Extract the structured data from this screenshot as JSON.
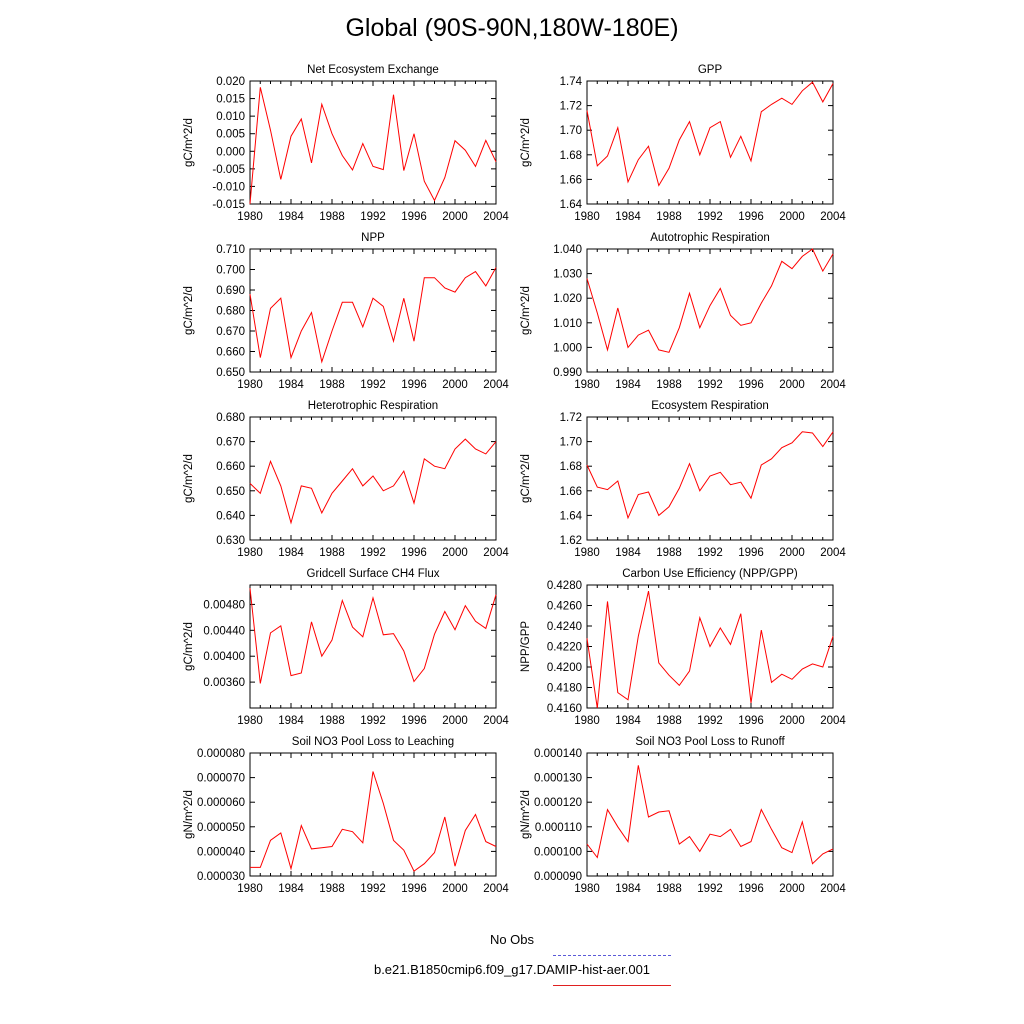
{
  "title": "Global (90S-90N,180W-180E)",
  "legend": {
    "obs_label": "No Obs",
    "obs_color": "#5a5ad8",
    "case_label": "b.e21.B1850cmip6.f09_g17.DAMIP-hist-aer.001",
    "case_color": "#e02020"
  },
  "line_color": "#ff0000",
  "chart_data": [
    {
      "type": "line",
      "title": "Net Ecosystem Exchange",
      "ylabel": "gC/m^2/d",
      "ylim": [
        -0.015,
        0.02
      ],
      "yticks": [
        -0.015,
        -0.01,
        -0.005,
        0.0,
        0.005,
        0.01,
        0.015,
        0.02
      ],
      "ytick_labels": [
        "-0.015",
        "-0.010",
        "-0.005",
        "0.000",
        "0.005",
        "0.010",
        "0.015",
        "0.020"
      ],
      "xlim": [
        1980,
        2004
      ],
      "xticks": [
        1980,
        1984,
        1988,
        1992,
        1996,
        2000,
        2004
      ],
      "x": [
        1980,
        1981,
        1982,
        1983,
        1984,
        1985,
        1986,
        1987,
        1988,
        1989,
        1990,
        1991,
        1992,
        1993,
        1994,
        1995,
        1996,
        1997,
        1998,
        1999,
        2000,
        2001,
        2002,
        2003,
        2004
      ],
      "values": [
        -0.015,
        0.0182,
        0.006,
        -0.008,
        0.0043,
        0.0092,
        -0.0033,
        0.0134,
        0.005,
        -0.0012,
        -0.0053,
        0.0022,
        -0.0043,
        -0.0052,
        0.0161,
        -0.0055,
        0.005,
        -0.0085,
        -0.014,
        -0.0075,
        0.003,
        0.0003,
        -0.0043,
        0.0031,
        -0.003
      ]
    },
    {
      "type": "line",
      "title": "GPP",
      "ylabel": "gC/m^2/d",
      "ylim": [
        1.64,
        1.74
      ],
      "yticks": [
        1.64,
        1.66,
        1.68,
        1.7,
        1.72,
        1.74
      ],
      "ytick_labels": [
        "1.64",
        "1.66",
        "1.68",
        "1.70",
        "1.72",
        "1.74"
      ],
      "xlim": [
        1980,
        2004
      ],
      "xticks": [
        1980,
        1984,
        1988,
        1992,
        1996,
        2000,
        2004
      ],
      "x": [
        1980,
        1981,
        1982,
        1983,
        1984,
        1985,
        1986,
        1987,
        1988,
        1989,
        1990,
        1991,
        1992,
        1993,
        1994,
        1995,
        1996,
        1997,
        1998,
        1999,
        2000,
        2001,
        2002,
        2003,
        2004
      ],
      "values": [
        1.716,
        1.671,
        1.679,
        1.702,
        1.658,
        1.676,
        1.687,
        1.655,
        1.669,
        1.692,
        1.707,
        1.68,
        1.702,
        1.707,
        1.678,
        1.695,
        1.675,
        1.715,
        1.721,
        1.726,
        1.721,
        1.732,
        1.739,
        1.723,
        1.738
      ]
    },
    {
      "type": "line",
      "title": "NPP",
      "ylabel": "gC/m^2/d",
      "ylim": [
        0.65,
        0.71
      ],
      "yticks": [
        0.65,
        0.66,
        0.67,
        0.68,
        0.69,
        0.7,
        0.71
      ],
      "ytick_labels": [
        "0.650",
        "0.660",
        "0.670",
        "0.680",
        "0.690",
        "0.700",
        "0.710"
      ],
      "xlim": [
        1980,
        2004
      ],
      "xticks": [
        1980,
        1984,
        1988,
        1992,
        1996,
        2000,
        2004
      ],
      "x": [
        1980,
        1981,
        1982,
        1983,
        1984,
        1985,
        1986,
        1987,
        1988,
        1989,
        1990,
        1991,
        1992,
        1993,
        1994,
        1995,
        1996,
        1997,
        1998,
        1999,
        2000,
        2001,
        2002,
        2003,
        2004
      ],
      "values": [
        0.688,
        0.657,
        0.681,
        0.686,
        0.657,
        0.67,
        0.679,
        0.655,
        0.67,
        0.684,
        0.684,
        0.672,
        0.686,
        0.682,
        0.665,
        0.686,
        0.665,
        0.696,
        0.696,
        0.691,
        0.689,
        0.696,
        0.699,
        0.692,
        0.701
      ]
    },
    {
      "type": "line",
      "title": "Autotrophic Respiration",
      "ylabel": "gC/m^2/d",
      "ylim": [
        0.99,
        1.04
      ],
      "yticks": [
        0.99,
        1.0,
        1.01,
        1.02,
        1.03,
        1.04
      ],
      "ytick_labels": [
        "0.990",
        "1.000",
        "1.010",
        "1.020",
        "1.030",
        "1.040"
      ],
      "xlim": [
        1980,
        2004
      ],
      "xticks": [
        1980,
        1984,
        1988,
        1992,
        1996,
        2000,
        2004
      ],
      "x": [
        1980,
        1981,
        1982,
        1983,
        1984,
        1985,
        1986,
        1987,
        1988,
        1989,
        1990,
        1991,
        1992,
        1993,
        1994,
        1995,
        1996,
        1997,
        1998,
        1999,
        2000,
        2001,
        2002,
        2003,
        2004
      ],
      "values": [
        1.028,
        1.014,
        0.999,
        1.016,
        1.0,
        1.005,
        1.007,
        0.999,
        0.998,
        1.008,
        1.022,
        1.008,
        1.017,
        1.024,
        1.013,
        1.009,
        1.01,
        1.018,
        1.025,
        1.035,
        1.032,
        1.037,
        1.04,
        1.031,
        1.038
      ]
    },
    {
      "type": "line",
      "title": "Heterotrophic Respiration",
      "ylabel": "gC/m^2/d",
      "ylim": [
        0.63,
        0.68
      ],
      "yticks": [
        0.63,
        0.64,
        0.65,
        0.66,
        0.67,
        0.68
      ],
      "ytick_labels": [
        "0.630",
        "0.640",
        "0.650",
        "0.660",
        "0.670",
        "0.680"
      ],
      "xlim": [
        1980,
        2004
      ],
      "xticks": [
        1980,
        1984,
        1988,
        1992,
        1996,
        2000,
        2004
      ],
      "x": [
        1980,
        1981,
        1982,
        1983,
        1984,
        1985,
        1986,
        1987,
        1988,
        1989,
        1990,
        1991,
        1992,
        1993,
        1994,
        1995,
        1996,
        1997,
        1998,
        1999,
        2000,
        2001,
        2002,
        2003,
        2004
      ],
      "values": [
        0.653,
        0.649,
        0.662,
        0.652,
        0.637,
        0.652,
        0.651,
        0.641,
        0.649,
        0.654,
        0.659,
        0.652,
        0.656,
        0.65,
        0.652,
        0.658,
        0.645,
        0.663,
        0.66,
        0.659,
        0.667,
        0.671,
        0.667,
        0.665,
        0.67
      ]
    },
    {
      "type": "line",
      "title": "Ecosystem Respiration",
      "ylabel": "gC/m^2/d",
      "ylim": [
        1.62,
        1.72
      ],
      "yticks": [
        1.62,
        1.64,
        1.66,
        1.68,
        1.7,
        1.72
      ],
      "ytick_labels": [
        "1.62",
        "1.64",
        "1.66",
        "1.68",
        "1.70",
        "1.72"
      ],
      "xlim": [
        1980,
        2004
      ],
      "xticks": [
        1980,
        1984,
        1988,
        1992,
        1996,
        2000,
        2004
      ],
      "x": [
        1980,
        1981,
        1982,
        1983,
        1984,
        1985,
        1986,
        1987,
        1988,
        1989,
        1990,
        1991,
        1992,
        1993,
        1994,
        1995,
        1996,
        1997,
        1998,
        1999,
        2000,
        2001,
        2002,
        2003,
        2004
      ],
      "values": [
        1.681,
        1.663,
        1.661,
        1.668,
        1.638,
        1.657,
        1.659,
        1.64,
        1.647,
        1.662,
        1.682,
        1.66,
        1.672,
        1.675,
        1.665,
        1.667,
        1.654,
        1.681,
        1.686,
        1.695,
        1.699,
        1.708,
        1.707,
        1.696,
        1.708
      ]
    },
    {
      "type": "line",
      "title": "Gridcell Surface CH4 Flux",
      "ylabel": "gC/m^2/d",
      "ylim": [
        0.0032,
        0.0051
      ],
      "yticks": [
        0.0036,
        0.004,
        0.0044,
        0.0048
      ],
      "ytick_labels": [
        "0.00360",
        "0.00400",
        "0.00440",
        "0.00480"
      ],
      "xlim": [
        1980,
        2004
      ],
      "xticks": [
        1980,
        1984,
        1988,
        1992,
        1996,
        2000,
        2004
      ],
      "x": [
        1980,
        1981,
        1982,
        1983,
        1984,
        1985,
        1986,
        1987,
        1988,
        1989,
        1990,
        1991,
        1992,
        1993,
        1994,
        1995,
        1996,
        1997,
        1998,
        1999,
        2000,
        2001,
        2002,
        2003,
        2004
      ],
      "values": [
        0.00505,
        0.00358,
        0.00436,
        0.00447,
        0.0037,
        0.00374,
        0.00453,
        0.004,
        0.00425,
        0.00486,
        0.00445,
        0.0043,
        0.0049,
        0.00433,
        0.00435,
        0.00408,
        0.00361,
        0.00381,
        0.00434,
        0.00469,
        0.00441,
        0.00478,
        0.00454,
        0.00443,
        0.00495
      ]
    },
    {
      "type": "line",
      "title": "Carbon Use Efficiency (NPP/GPP)",
      "ylabel": "NPP/GPP",
      "ylim": [
        0.416,
        0.428
      ],
      "yticks": [
        0.416,
        0.418,
        0.42,
        0.422,
        0.424,
        0.426,
        0.428
      ],
      "ytick_labels": [
        "0.4160",
        "0.4180",
        "0.4200",
        "0.4220",
        "0.4240",
        "0.4260",
        "0.4280"
      ],
      "xlim": [
        1980,
        2004
      ],
      "xticks": [
        1980,
        1984,
        1988,
        1992,
        1996,
        2000,
        2004
      ],
      "x": [
        1980,
        1981,
        1982,
        1983,
        1984,
        1985,
        1986,
        1987,
        1988,
        1989,
        1990,
        1991,
        1992,
        1993,
        1994,
        1995,
        1996,
        1997,
        1998,
        1999,
        2000,
        2001,
        2002,
        2003,
        2004
      ],
      "values": [
        0.4228,
        0.416,
        0.4264,
        0.4175,
        0.4168,
        0.423,
        0.4274,
        0.4204,
        0.4192,
        0.4182,
        0.4196,
        0.4248,
        0.422,
        0.4238,
        0.4222,
        0.4252,
        0.4165,
        0.4236,
        0.4185,
        0.4193,
        0.4188,
        0.4198,
        0.4203,
        0.42,
        0.423
      ]
    },
    {
      "type": "line",
      "title": "Soil NO3 Pool Loss to Leaching",
      "ylabel": "gN/m^2/d",
      "ylim": [
        3e-05,
        8e-05
      ],
      "yticks": [
        3e-05,
        4e-05,
        5e-05,
        6e-05,
        7e-05,
        8e-05
      ],
      "ytick_labels": [
        "0.000030",
        "0.000040",
        "0.000050",
        "0.000060",
        "0.000070",
        "0.000080"
      ],
      "xlim": [
        1980,
        2004
      ],
      "xticks": [
        1980,
        1984,
        1988,
        1992,
        1996,
        2000,
        2004
      ],
      "x": [
        1980,
        1981,
        1982,
        1983,
        1984,
        1985,
        1986,
        1987,
        1988,
        1989,
        1990,
        1991,
        1992,
        1993,
        1994,
        1995,
        1996,
        1997,
        1998,
        1999,
        2000,
        2001,
        2002,
        2003,
        2004
      ],
      "values": [
        3.35e-05,
        3.35e-05,
        4.45e-05,
        4.75e-05,
        3.3e-05,
        5.05e-05,
        4.1e-05,
        4.15e-05,
        4.2e-05,
        4.9e-05,
        4.8e-05,
        4.35e-05,
        7.25e-05,
        5.95e-05,
        4.45e-05,
        4.05e-05,
        3.2e-05,
        3.5e-05,
        3.95e-05,
        5.4e-05,
        3.4e-05,
        4.85e-05,
        5.5e-05,
        4.4e-05,
        4.2e-05
      ]
    },
    {
      "type": "line",
      "title": "Soil NO3 Pool Loss to Runoff",
      "ylabel": "gN/m^2/d",
      "ylim": [
        9e-05,
        0.00014
      ],
      "yticks": [
        9e-05,
        0.0001,
        0.00011,
        0.00012,
        0.00013,
        0.00014
      ],
      "ytick_labels": [
        "0.000090",
        "0.000100",
        "0.000110",
        "0.000120",
        "0.000130",
        "0.000140"
      ],
      "xlim": [
        1980,
        2004
      ],
      "xticks": [
        1980,
        1984,
        1988,
        1992,
        1996,
        2000,
        2004
      ],
      "x": [
        1980,
        1981,
        1982,
        1983,
        1984,
        1985,
        1986,
        1987,
        1988,
        1989,
        1990,
        1991,
        1992,
        1993,
        1994,
        1995,
        1996,
        1997,
        1998,
        1999,
        2000,
        2001,
        2002,
        2003,
        2004
      ],
      "values": [
        0.000103,
        9.75e-05,
        0.000117,
        0.00011,
        0.000104,
        0.000135,
        0.000114,
        0.000116,
        0.0001165,
        0.000103,
        0.000106,
        0.0001,
        0.000107,
        0.000106,
        0.000109,
        0.000102,
        0.000104,
        0.000117,
        0.000109,
        0.0001015,
        9.95e-05,
        0.000112,
        9.5e-05,
        9.9e-05,
        0.000101
      ]
    }
  ]
}
